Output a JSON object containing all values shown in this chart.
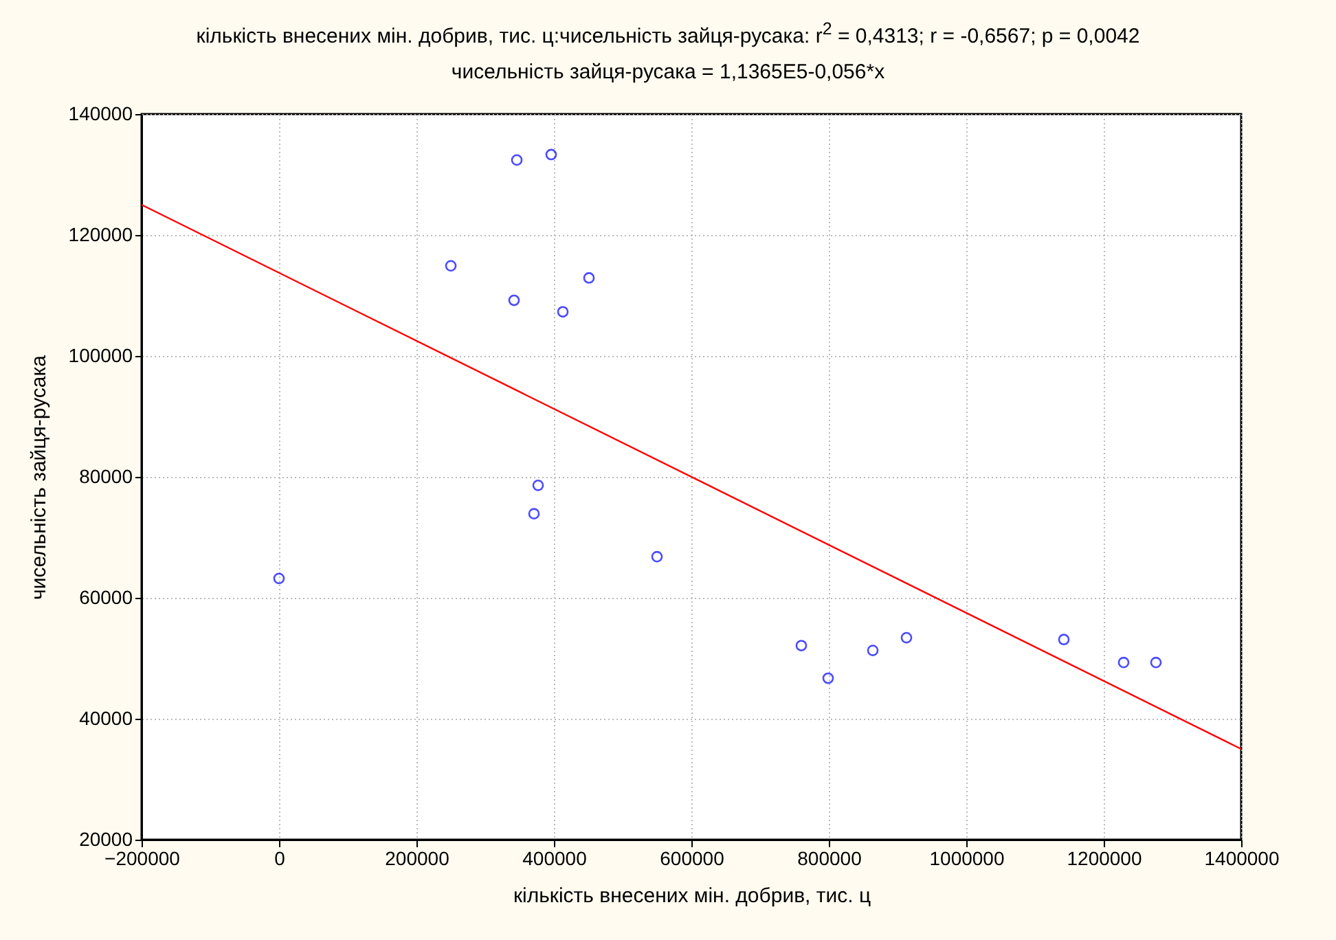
{
  "chart_data": {
    "type": "scatter",
    "title": "кількість внесених мін. добрив, тис. ц:чисельність зайця-русака:  r$^{2}$ = 0,4313;  r = -0,6567; p = 0,0042",
    "subtitle": "чисельність зайця-русака = 1,1365E5-0,056*x",
    "xlabel": "кількість внесених мін. добрив, тис. ц",
    "ylabel": "чисельність зайця-русака",
    "series": [
      {
        "color": "#0000ff",
        "marker": "circle",
        "x": [
          0,
          250000,
          342000,
          346000,
          371000,
          377000,
          396000,
          413000,
          451000,
          550000,
          760000,
          799000,
          864000,
          913000,
          1142000,
          1229000,
          1276000
        ],
        "values": [
          63200,
          114900,
          109200,
          132400,
          73900,
          78600,
          133300,
          107300,
          112900,
          66800,
          52100,
          46700,
          51300,
          53400,
          53100,
          49300,
          49300
        ]
      },
      {
        "type": "line",
        "color": "#ff0000",
        "x": [
          -200000,
          1400000
        ],
        "values": [
          125000,
          35000
        ]
      }
    ],
    "xlim": [
      -200000,
      1400000
    ],
    "xticks": [
      -200000,
      0,
      200000,
      400000,
      600000,
      800000,
      1000000,
      1200000,
      1400000
    ],
    "ylim": [
      20000,
      140000
    ],
    "yticks": [
      20000,
      40000,
      60000,
      80000,
      100000,
      120000,
      140000
    ],
    "grid": true
  }
}
